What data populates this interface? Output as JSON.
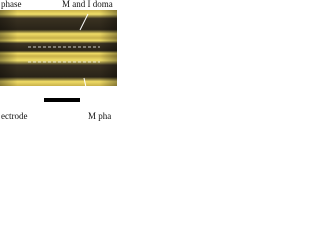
{
  "labels": {
    "top_left": "phase",
    "top_right": "M and I doma",
    "bottom_left": "ectrode",
    "bottom_right": "M pha"
  }
}
